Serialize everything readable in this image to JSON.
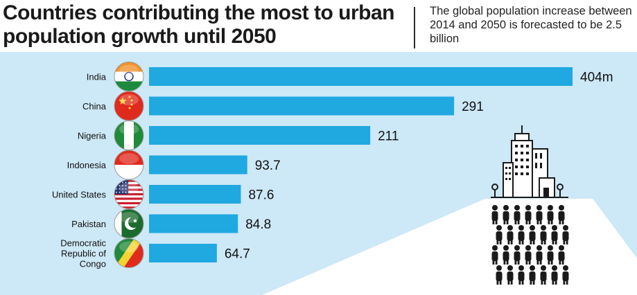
{
  "header": {
    "title": "Countries contributing the most to urban population growth until 2050",
    "subtitle": "The global population increase between 2014 and 2050 is forecasted to be 2.5 billion"
  },
  "colors": {
    "bar": "#20a8e0",
    "background": "#cde8f6",
    "text": "#111111"
  },
  "chart_data": {
    "type": "bar",
    "orientation": "horizontal",
    "title": "Countries contributing the most to urban population growth until 2050",
    "categories": [
      "India",
      "China",
      "Nigeria",
      "Indonesia",
      "United States",
      "Pakistan",
      "Democratic Republic of Congo"
    ],
    "category_lines": [
      [
        "India"
      ],
      [
        "China"
      ],
      [
        "Nigeria"
      ],
      [
        "Indonesia"
      ],
      [
        "United States"
      ],
      [
        "Pakistan"
      ],
      [
        "Democratic",
        "Republic of",
        "Congo"
      ]
    ],
    "values": [
      404,
      291,
      211,
      93.7,
      87.6,
      84.8,
      64.7
    ],
    "value_labels": [
      "404m",
      "291",
      "211",
      "93.7",
      "87.6",
      "84.8",
      "64.7"
    ],
    "flags": [
      "india-flag-icon",
      "china-flag-icon",
      "nigeria-flag-icon",
      "indonesia-flag-icon",
      "united-states-flag-icon",
      "pakistan-flag-icon",
      "congo-flag-icon"
    ],
    "unit": "million",
    "xlim": [
      0,
      404
    ],
    "grid": false,
    "legend": "none"
  },
  "illustration": {
    "icon": "city-skyline-crowd-icon"
  }
}
